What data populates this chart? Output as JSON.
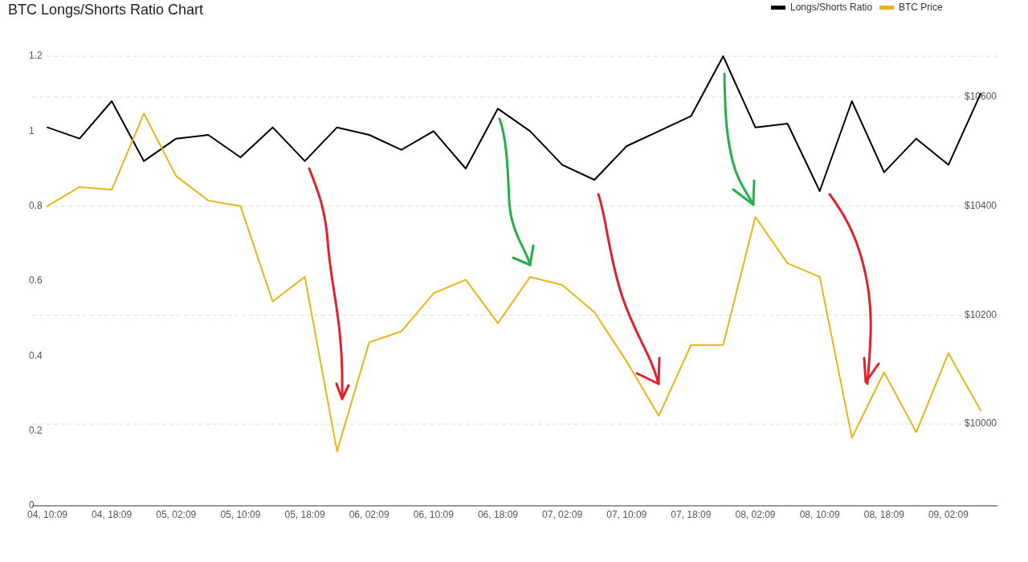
{
  "chart_data": {
    "type": "line",
    "title": "BTC Longs/Shorts Ratio Chart",
    "categories": [
      "04, 10:09",
      null,
      "04, 18:09",
      null,
      "05, 02:09",
      null,
      "05, 10:09",
      null,
      "05, 18:09",
      null,
      "06, 02:09",
      null,
      "06, 10:09",
      null,
      "06, 18:09",
      null,
      "07, 02:09",
      null,
      "07, 10:09",
      null,
      "07, 18:09",
      null,
      "08, 02:09",
      null,
      "08, 10:09",
      null,
      "08, 18:09",
      null,
      "09, 02:09",
      null
    ],
    "series": [
      {
        "name": "Longs/Shorts Ratio",
        "color": "#000000",
        "values": [
          1.01,
          0.98,
          1.08,
          0.92,
          0.98,
          0.99,
          0.93,
          1.01,
          0.92,
          1.01,
          0.99,
          0.95,
          1.0,
          0.9,
          1.06,
          1.0,
          0.91,
          0.87,
          0.96,
          1.0,
          1.04,
          1.2,
          1.01,
          1.02,
          0.84,
          1.08,
          0.89,
          0.98,
          0.91,
          1.1
        ]
      },
      {
        "name": "BTC Price",
        "color": "#e8b517",
        "axis": "y2",
        "values": [
          10400,
          10435,
          10430,
          10570,
          10455,
          10410,
          10400,
          10225,
          10270,
          9950,
          10150,
          10170,
          10240,
          10265,
          10185,
          10270,
          10255,
          10205,
          10115,
          10015,
          10145,
          10145,
          10380,
          10295,
          10270,
          9975,
          10095,
          9985,
          10130,
          10025
        ]
      }
    ],
    "ylim": [
      0,
      1.2
    ],
    "yticks": [
      0,
      0.2,
      0.4,
      0.6,
      0.8,
      1,
      1.2
    ],
    "y2lim": [
      9850,
      10675
    ],
    "y2ticks": [
      {
        "value": 10000,
        "label": "$10000"
      },
      {
        "value": 10200,
        "label": "$10200"
      },
      {
        "value": 10400,
        "label": "$10400"
      },
      {
        "value": 10600,
        "label": "$10600"
      }
    ],
    "grid": true,
    "legend": "top right",
    "marker": "none",
    "line_style": "solid"
  }
}
